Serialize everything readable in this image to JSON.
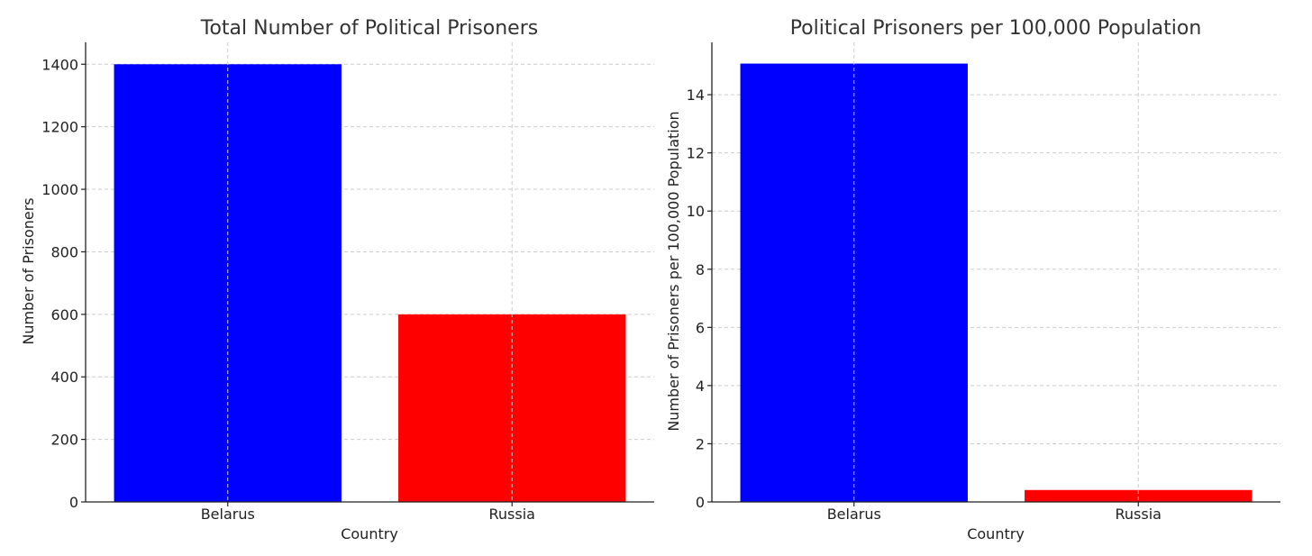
{
  "chart_data": [
    {
      "type": "bar",
      "title": "Total Number of Political Prisoners",
      "xlabel": "Country",
      "ylabel": "Number of Prisoners",
      "categories": [
        "Belarus",
        "Russia"
      ],
      "values": [
        1400,
        600
      ],
      "colors": [
        "#0000ff",
        "#ff0000"
      ],
      "ylim": [
        0,
        1470
      ],
      "yticks": [
        0,
        200,
        400,
        600,
        800,
        1000,
        1200,
        1400
      ],
      "grid": true
    },
    {
      "type": "bar",
      "title": "Political Prisoners per 100,000 Population",
      "xlabel": "Country",
      "ylabel": "Number of Prisoners per 100,000 Population",
      "categories": [
        "Belarus",
        "Russia"
      ],
      "values": [
        15.07,
        0.41
      ],
      "colors": [
        "#0000ff",
        "#ff0000"
      ],
      "ylim": [
        0,
        15.8
      ],
      "yticks": [
        0,
        2,
        4,
        6,
        8,
        10,
        12,
        14
      ],
      "grid": true
    }
  ]
}
